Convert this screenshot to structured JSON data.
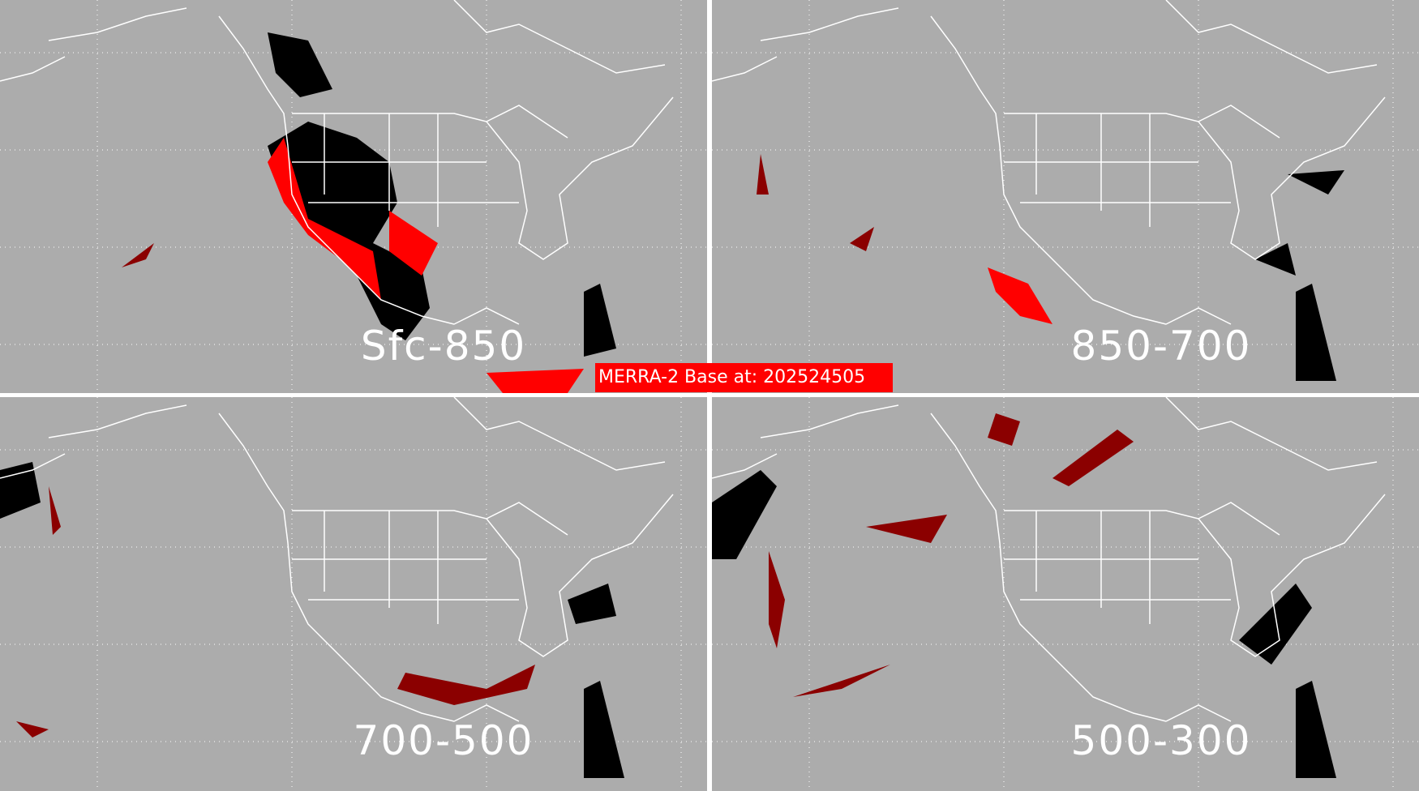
{
  "banner": {
    "text": "MERRA-2 Base at: 202524505",
    "color": "#ff0000"
  },
  "panels": [
    {
      "label": "Sfc-850"
    },
    {
      "label": "850-700"
    },
    {
      "label": "700-500"
    },
    {
      "label": "500-300"
    }
  ],
  "colors": {
    "background": "#acacac",
    "divider": "#ffffff",
    "black_category": "#000000",
    "red_category": "#ff0000",
    "darkred_category": "#8b0000",
    "pink_category": "#ffb0b8",
    "coastline": "#ffffff"
  }
}
